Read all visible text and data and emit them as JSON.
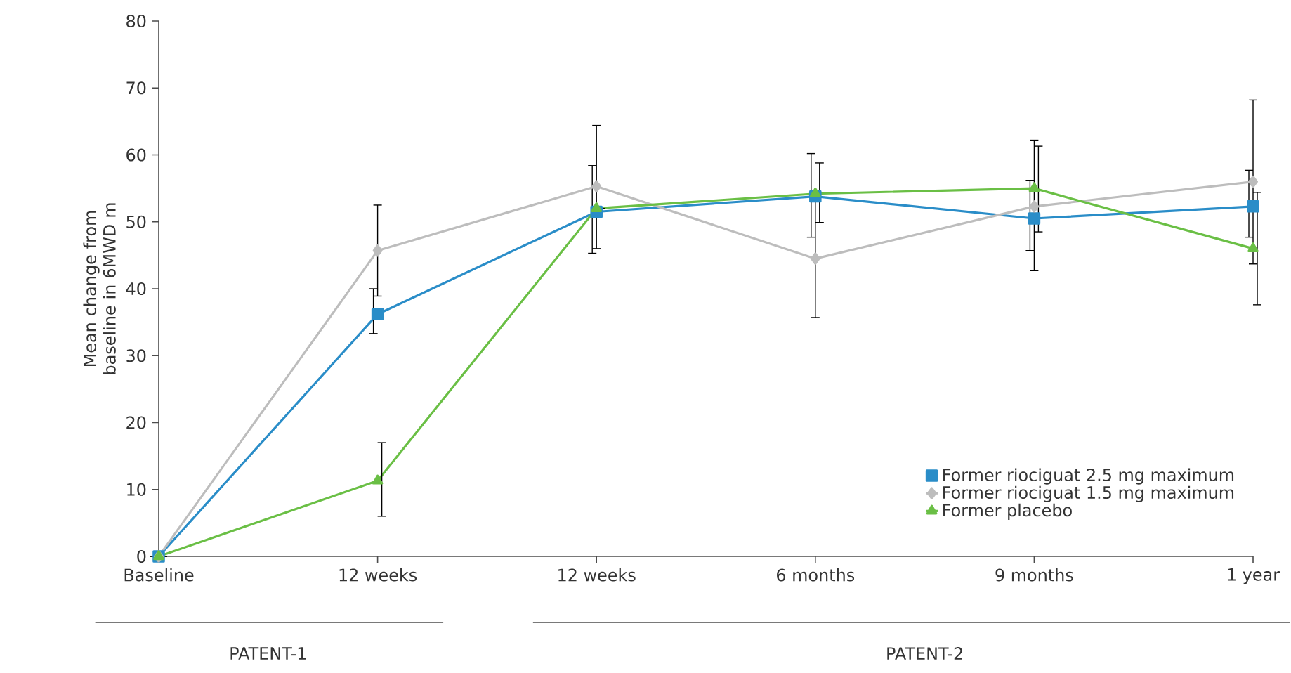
{
  "chart_data": {
    "type": "line",
    "ylabel": "Mean change from baseline in 6MWD m",
    "categories": [
      "Baseline",
      "12 weeks",
      "12 weeks",
      "6 months",
      "9 months",
      "1 year"
    ],
    "ylim": [
      0,
      80
    ],
    "yticks": [
      0,
      10,
      20,
      30,
      40,
      50,
      60,
      70,
      80
    ],
    "grid": false,
    "legend": "bottom right",
    "line_style": "solid",
    "annotations": [
      "PATENT-1",
      "PATENT-2"
    ],
    "series": [
      {
        "name": "Former riociguat 2.5 mg maximum",
        "color": "#2a8dc8",
        "marker": "square",
        "values": [
          0,
          36.2,
          51.5,
          53.8,
          50.5,
          52.3
        ],
        "errors": [
          null,
          [
            33.3,
            40
          ],
          [
            45.3,
            58.4
          ],
          [
            47.7,
            60.2
          ],
          [
            45.7,
            56.2
          ],
          [
            47.7,
            57.7
          ]
        ]
      },
      {
        "name": "Former riociguat 1.5 mg maximum",
        "color": "#bdbdbd",
        "marker": "diamond",
        "values": [
          0,
          45.7,
          55.3,
          44.5,
          52.3,
          56
        ],
        "errors": [
          null,
          [
            38.9,
            52.5
          ],
          [
            46,
            64.4
          ],
          [
            35.7,
            53.3
          ],
          [
            42.7,
            62.2
          ],
          [
            43.7,
            68.2
          ]
        ]
      },
      {
        "name": "Former placebo",
        "color": "#6abf45",
        "marker": "triangle",
        "values": [
          0,
          11.3,
          52,
          54.2,
          55,
          46
        ],
        "errors": [
          null,
          [
            6,
            17
          ],
          null,
          [
            49.9,
            58.8
          ],
          [
            48.5,
            61.3
          ],
          [
            37.6,
            54.4
          ]
        ]
      }
    ]
  }
}
